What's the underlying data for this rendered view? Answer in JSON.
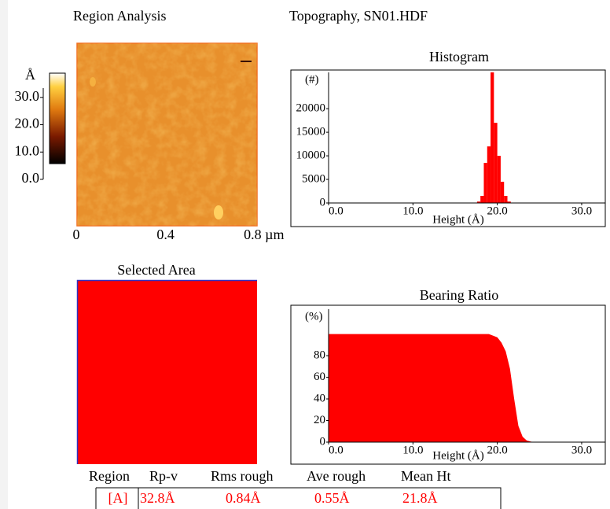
{
  "header": {
    "left": "Region Analysis",
    "right": "Topography, SN01.HDF"
  },
  "image": {
    "colorbar_label": "Å",
    "colorbar_lim": [
      0,
      33.4
    ],
    "colorbar_ticks": [
      {
        "value": 0,
        "label": "0.0"
      },
      {
        "value": 10,
        "label": "10.0"
      },
      {
        "value": 20,
        "label": "20.0"
      },
      {
        "value": 30,
        "label": "30.0"
      }
    ],
    "xlim": [
      0,
      0.81
    ],
    "xticks": [
      0,
      0.4,
      {
        "value": 0.8,
        "label": "0.8 µm"
      }
    ]
  },
  "chart_data": [
    {
      "type": "histogram",
      "title": "Histogram",
      "xlabel": "Height (Å)",
      "ylabel": "(#)",
      "color": "#ff0000",
      "bins": [
        17.6,
        18.0,
        18.4,
        18.8,
        19.2,
        19.6,
        20.0,
        20.4,
        20.8,
        21.2,
        21.6
      ],
      "values": [
        300,
        1500,
        8500,
        12000,
        27700,
        17000,
        10000,
        4500,
        1500,
        300
      ],
      "xlim": [
        0,
        32.8
      ],
      "ylim": [
        0,
        27700
      ],
      "xticks": [
        {
          "value": 0,
          "label": "0.0"
        },
        {
          "value": 10,
          "label": "10.0"
        },
        {
          "value": 20,
          "label": "20.0"
        },
        {
          "value": 30,
          "label": "30.0"
        }
      ],
      "yticks": [
        0,
        5000,
        10000,
        15000,
        20000
      ]
    },
    {
      "type": "area",
      "title": "Bearing Ratio",
      "xlabel": "Height (Å)",
      "ylabel": "(%)",
      "color": "#ff0000",
      "x": [
        0,
        19.0,
        20.0,
        20.5,
        21.0,
        21.5,
        22.0,
        22.5,
        23.0,
        23.5,
        24.0,
        24.5
      ],
      "values": [
        100,
        100,
        97,
        92,
        84,
        68,
        40,
        15,
        5,
        1.5,
        0.5,
        0
      ],
      "xlim": [
        0,
        32.8
      ],
      "ylim": [
        0,
        123
      ],
      "xticks": [
        {
          "value": 0,
          "label": "0.0"
        },
        {
          "value": 10,
          "label": "10.0"
        },
        {
          "value": 20,
          "label": "20.0"
        },
        {
          "value": 30,
          "label": "30.0"
        }
      ],
      "yticks": [
        0,
        20,
        40,
        60,
        80
      ]
    }
  ],
  "selected_area": {
    "title": "Selected Area"
  },
  "table": {
    "header": [
      "Region",
      "Rp-v",
      "Rms rough",
      "Ave rough",
      "Mean Ht"
    ],
    "rows": [
      [
        "[A]",
        "32.8Å",
        "0.84Å",
        "0.55Å",
        "21.8Å"
      ]
    ]
  }
}
